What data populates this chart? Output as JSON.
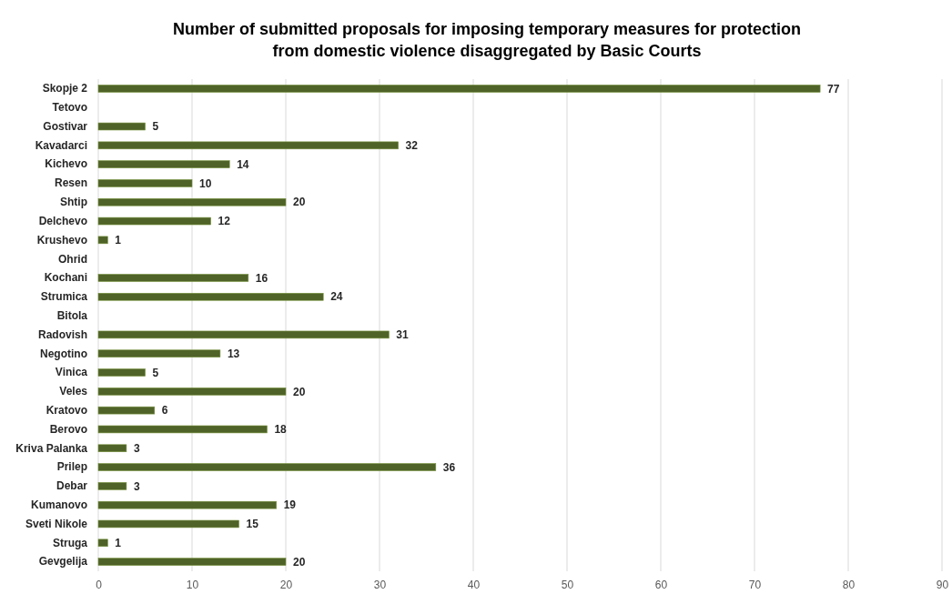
{
  "chart_data": {
    "type": "bar",
    "orientation": "horizontal",
    "title": "Number of submitted proposals for imposing temporary measures for protection from domestic violence disaggregated by Basic Courts",
    "categories": [
      "Skopje 2",
      "Tetovo",
      "Gostivar",
      "Kavadarci",
      "Kichevo",
      "Resen",
      "Shtip",
      "Delchevo",
      "Krushevo",
      "Ohrid",
      "Kochani",
      "Strumica",
      "Bitola",
      "Radovish",
      "Negotino",
      "Vinica",
      "Veles",
      "Kratovo",
      "Berovo",
      "Kriva Palanka",
      "Prilep",
      "Debar",
      "Kumanovo",
      "Sveti Nikole",
      "Struga",
      "Gevgelija"
    ],
    "values": [
      77,
      null,
      5,
      32,
      14,
      10,
      20,
      12,
      1,
      null,
      16,
      24,
      null,
      31,
      13,
      5,
      20,
      6,
      18,
      3,
      36,
      3,
      19,
      15,
      1,
      20
    ],
    "color": "#4f6228",
    "xlim": [
      0,
      90
    ],
    "xticks": [
      0,
      10,
      20,
      30,
      40,
      50,
      60,
      70,
      80,
      90
    ],
    "grid": "x",
    "data_labels": true
  }
}
